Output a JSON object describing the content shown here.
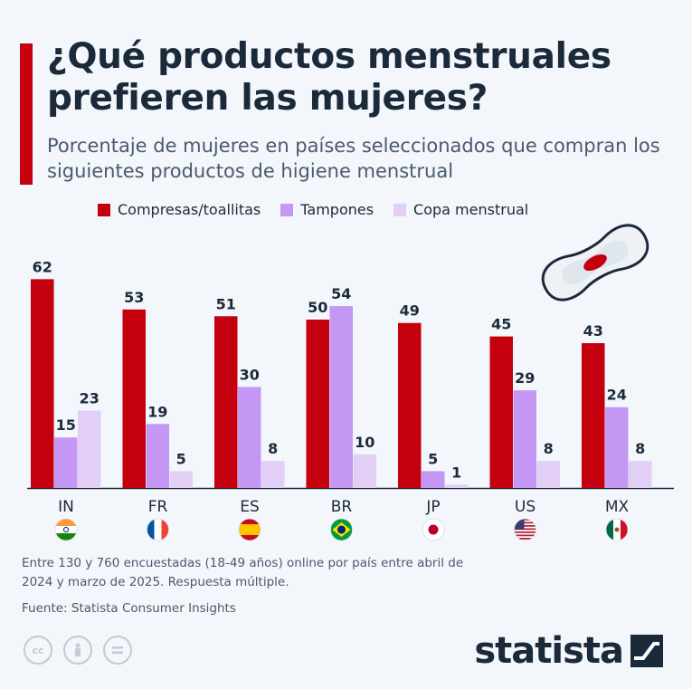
{
  "header": {
    "title": "¿Qué productos menstruales prefieren las mujeres?",
    "subtitle": "Porcentaje de mujeres en países seleccionados que compran los siguientes productos de higiene menstrual"
  },
  "legend": [
    {
      "label": "Compresas/toallitas",
      "color": "#c4000f"
    },
    {
      "label": "Tampones",
      "color": "#c597f4"
    },
    {
      "label": "Copa menstrual",
      "color": "#e2cff6"
    }
  ],
  "footer": {
    "note": "Entre 130 y 760 encuestadas (18-49 años) online por país entre abril de 2024 y marzo de 2025. Respuesta múltiple.",
    "source": "Fuente: Statista Consumer Insights"
  },
  "brand": {
    "name": "statista"
  },
  "license_icons": [
    "cc-icon",
    "person-icon",
    "equal-icon"
  ],
  "chart_data": {
    "type": "bar",
    "categories": [
      "IN",
      "FR",
      "ES",
      "BR",
      "JP",
      "US",
      "MX"
    ],
    "flags": [
      "india-flag-icon",
      "france-flag-icon",
      "spain-flag-icon",
      "brazil-flag-icon",
      "japan-flag-icon",
      "usa-flag-icon",
      "mexico-flag-icon"
    ],
    "series": [
      {
        "name": "Compresas/toallitas",
        "color": "#c4000f",
        "values": [
          62,
          53,
          51,
          50,
          49,
          45,
          43
        ]
      },
      {
        "name": "Tampones",
        "color": "#c597f4",
        "values": [
          15,
          19,
          30,
          54,
          5,
          29,
          24
        ]
      },
      {
        "name": "Copa menstrual",
        "color": "#e2cff6",
        "values": [
          23,
          5,
          8,
          10,
          1,
          8,
          8
        ]
      }
    ],
    "ylim": [
      0,
      70
    ],
    "grid": false,
    "legend_position": "top"
  }
}
